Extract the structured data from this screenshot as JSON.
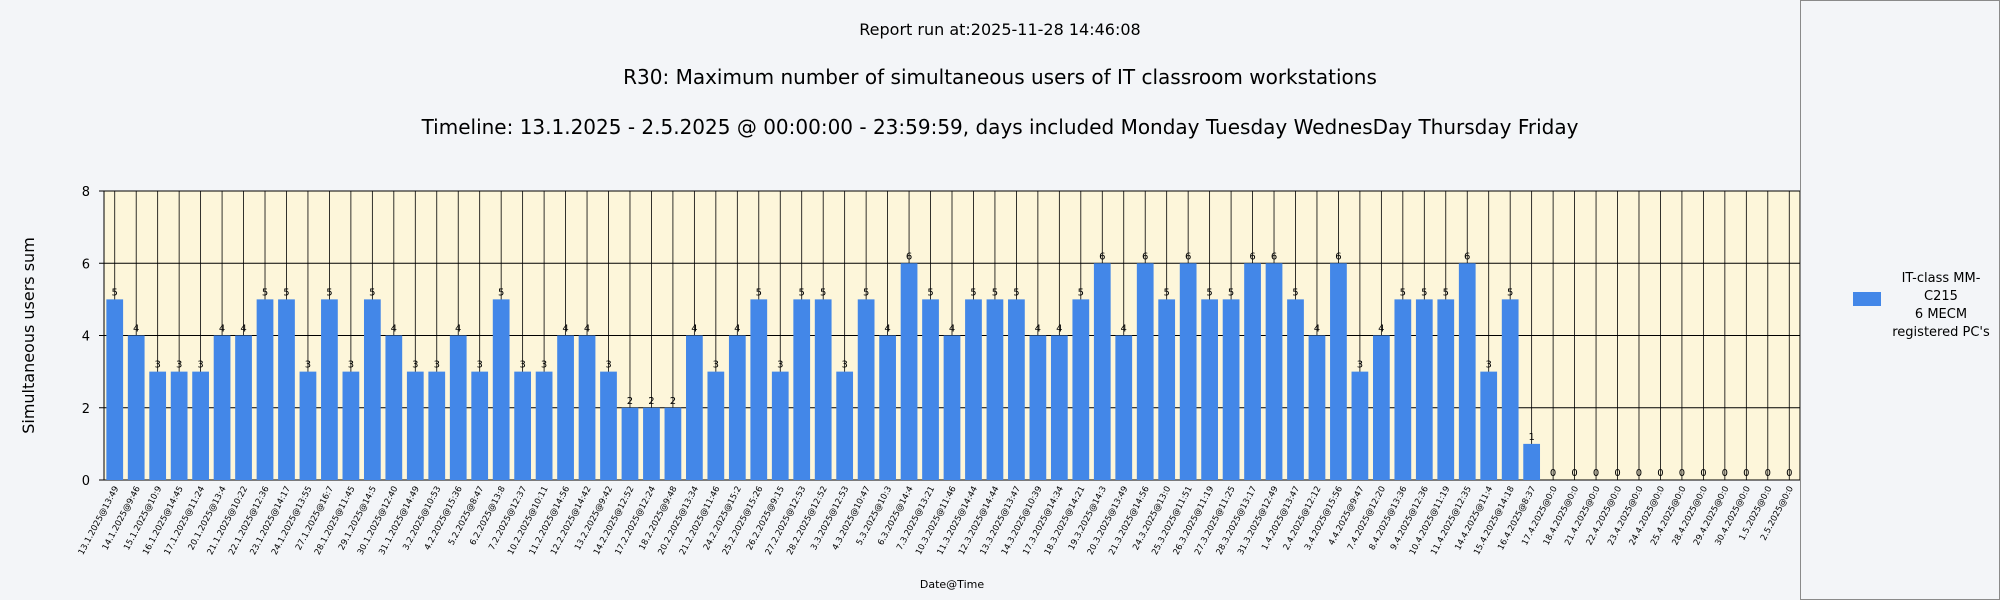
{
  "report_run": "Report run at:2025-11-28 14:46:08",
  "colors": {
    "bar": "#4387e8",
    "plot_bg": "#fdf6da",
    "grid": "#000000"
  },
  "chart_data": {
    "type": "bar",
    "title": "R30: Maximum number of simultaneous users of IT classroom workstations",
    "subtitle": "Timeline: 13.1.2025  - 2.5.2025  @  00:00:00 -  23:59:59, days included Monday Tuesday WednesDay Thursday Friday",
    "xlabel": "Date@Time",
    "ylabel": "Simultaneous users sum",
    "ylim": [
      0,
      8
    ],
    "yticks": [
      "0",
      "2",
      "4",
      "6",
      "8"
    ],
    "grid": true,
    "legend_position": "right",
    "categories": [
      "13.1.2025@13:49",
      "14.1.2025@9:46",
      "15.1.2025@10:9",
      "16.1.2025@14:45",
      "17.1.2025@11:24",
      "20.1.2025@13:4",
      "21.1.2025@10:22",
      "22.1.2025@12:36",
      "23.1.2025@14:17",
      "24.1.2025@13:55",
      "27.1.2025@16:7",
      "28.1.2025@11:45",
      "29.1.2025@14:5",
      "30.1.2025@12:40",
      "31.1.2025@14:49",
      "3.2.2025@10:53",
      "4.2.2025@15:36",
      "5.2.2025@8:47",
      "6.2.2025@13:8",
      "7.2.2025@12:37",
      "10.2.2025@10:11",
      "11.2.2025@14:56",
      "12.2.2025@14:42",
      "13.2.2025@9:42",
      "14.2.2025@12:52",
      "17.2.2025@12:24",
      "18.2.2025@9:48",
      "20.2.2025@13:34",
      "21.2.2025@11:46",
      "24.2.2025@15:2",
      "25.2.2025@15:26",
      "26.2.2025@9:15",
      "27.2.2025@12:53",
      "28.2.2025@12:52",
      "3.3.2025@12:53",
      "4.3.2025@10:47",
      "5.3.2025@10:3",
      "6.3.2025@14:4",
      "7.3.2025@13:21",
      "10.3.2025@11:46",
      "11.3.2025@14:44",
      "12.3.2025@14:44",
      "13.3.2025@13:47",
      "14.3.2025@10:39",
      "17.3.2025@14:34",
      "18.3.2025@14:21",
      "19.3.2025@14:3",
      "20.3.2025@13:49",
      "21.3.2025@14:56",
      "24.3.2025@13:0",
      "25.3.2025@11:51",
      "26.3.2025@11:19",
      "27.3.2025@11:25",
      "28.3.2025@13:17",
      "31.3.2025@12:49",
      "1.4.2025@13:47",
      "2.4.2025@12:12",
      "3.4.2025@15:56",
      "4.4.2025@9:47",
      "7.4.2025@12:20",
      "8.4.2025@13:36",
      "9.4.2025@12:36",
      "10.4.2025@11:19",
      "11.4.2025@12:35",
      "14.4.2025@11:4",
      "15.4.2025@14:18",
      "16.4.2025@8:37",
      "17.4.2025@0:0",
      "18.4.2025@0:0",
      "21.4.2025@0:0",
      "22.4.2025@0:0",
      "23.4.2025@0:0",
      "24.4.2025@0:0",
      "25.4.2025@0:0",
      "28.4.2025@0:0",
      "29.4.2025@0:0",
      "30.4.2025@0:0",
      "1.5.2025@0:0",
      "2.5.2025@0:0"
    ],
    "series": [
      {
        "name": "IT-class MM-C215\n6 MECM\nregistered PC's",
        "values": [
          5,
          4,
          3,
          3,
          3,
          4,
          4,
          5,
          5,
          3,
          5,
          3,
          5,
          4,
          3,
          3,
          4,
          3,
          5,
          3,
          3,
          4,
          4,
          3,
          2,
          2,
          2,
          4,
          3,
          4,
          5,
          3,
          5,
          5,
          3,
          5,
          4,
          6,
          5,
          4,
          5,
          5,
          5,
          4,
          4,
          5,
          6,
          4,
          6,
          5,
          6,
          5,
          5,
          6,
          6,
          5,
          4,
          6,
          3,
          4,
          5,
          5,
          5,
          6,
          3,
          5,
          1,
          0,
          0,
          0,
          0,
          0,
          0,
          0,
          0,
          0,
          0,
          0,
          0
        ]
      }
    ]
  }
}
